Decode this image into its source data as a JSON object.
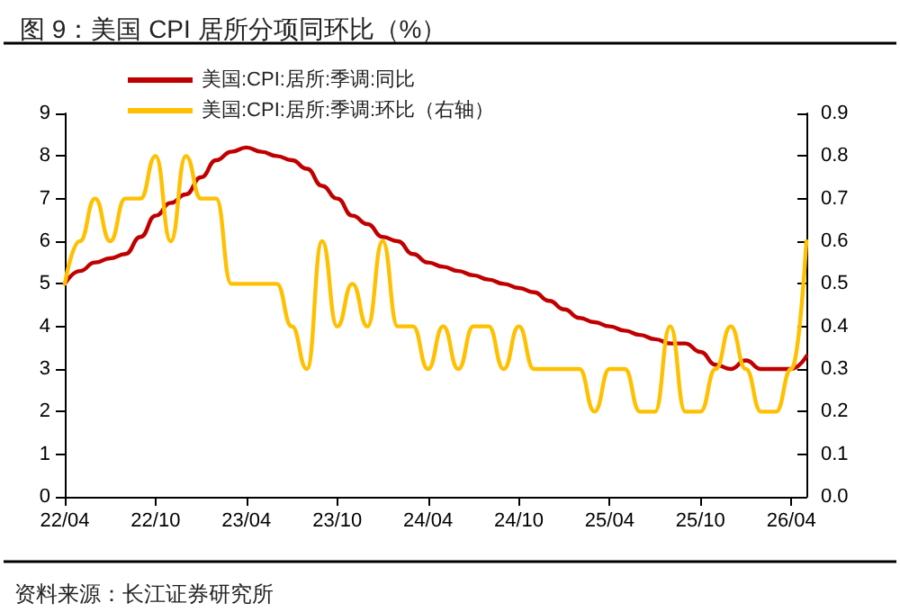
{
  "chart_data": {
    "type": "line",
    "title": "图 9：美国 CPI 居所分项同环比（%）",
    "annotations": [
      "资料来源：长江证券研究所"
    ],
    "categories": [
      "22/04",
      null,
      null,
      null,
      null,
      null,
      "22/10",
      null,
      null,
      null,
      null,
      null,
      "23/04",
      null,
      null,
      null,
      null,
      null,
      "23/10",
      null,
      null,
      null,
      null,
      null,
      "24/04",
      null,
      null,
      null,
      null,
      null,
      "24/10",
      null,
      null,
      null,
      null,
      null,
      "25/04",
      null,
      null,
      null,
      null,
      null,
      "25/10",
      null,
      null,
      null,
      null,
      null,
      "26/04",
      null
    ],
    "series": [
      {
        "name": "美国:CPI:居所:季调:同比",
        "color": "#c00000",
        "values": [
          5.0,
          5.3,
          5.5,
          5.6,
          5.7,
          6.1,
          6.6,
          6.9,
          7.1,
          7.5,
          7.9,
          8.1,
          8.2,
          8.1,
          8.0,
          7.9,
          7.7,
          7.3,
          7.0,
          6.6,
          6.4,
          6.1,
          6.0,
          5.7,
          5.5,
          5.4,
          5.3,
          5.2,
          5.1,
          5.0,
          4.9,
          4.8,
          4.6,
          4.4,
          4.2,
          4.1,
          4.0,
          3.9,
          3.8,
          3.7,
          3.6,
          3.6,
          3.4,
          3.1,
          3.0,
          3.2,
          3.0,
          3.0,
          3.0,
          3.3
        ]
      },
      {
        "name": "美国:CPI:居所:季调:环比（右轴）",
        "color": "#ffc000",
        "axis": "y2",
        "values": [
          0.5,
          0.6,
          0.7,
          0.6,
          0.7,
          0.7,
          0.8,
          0.6,
          0.8,
          0.7,
          0.7,
          0.5,
          0.5,
          0.5,
          0.5,
          0.4,
          0.3,
          0.6,
          0.4,
          0.5,
          0.4,
          0.6,
          0.4,
          0.4,
          0.3,
          0.4,
          0.3,
          0.4,
          0.4,
          0.3,
          0.4,
          0.3,
          0.3,
          0.3,
          0.3,
          0.2,
          0.3,
          0.3,
          0.2,
          0.2,
          0.4,
          0.2,
          0.2,
          0.3,
          0.4,
          0.3,
          0.2,
          0.2,
          0.3,
          0.6
        ]
      }
    ],
    "ylim": [
      0,
      9
    ],
    "yticks": [
      0,
      1,
      2,
      3,
      4,
      5,
      6,
      7,
      8,
      9
    ],
    "y2lim": [
      0,
      0.9
    ],
    "y2ticks": [
      {
        "value": 0,
        "label": "0.0"
      },
      {
        "value": 0.1,
        "label": "0.1"
      },
      {
        "value": 0.2,
        "label": "0.2"
      },
      {
        "value": 0.3,
        "label": "0.3"
      },
      {
        "value": 0.4,
        "label": "0.4"
      },
      {
        "value": 0.5,
        "label": "0.5"
      },
      {
        "value": 0.6,
        "label": "0.6"
      },
      {
        "value": 0.7,
        "label": "0.7"
      },
      {
        "value": 0.8,
        "label": "0.8"
      },
      {
        "value": 0.9,
        "label": "0.9"
      }
    ],
    "grid": false,
    "legend": "top left",
    "marker": "none",
    "line_style": "solid"
  }
}
